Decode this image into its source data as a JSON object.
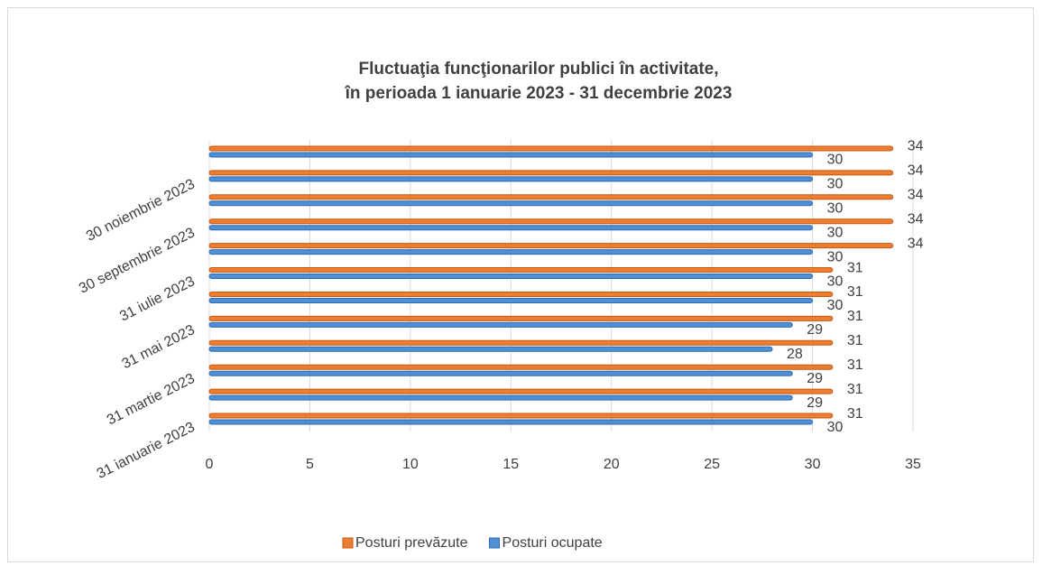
{
  "chart_data": {
    "type": "hbar",
    "title": [
      "Fluctuaţia funcţionarilor publici în activitate,",
      "în perioada 1 ianuarie 2023 - 31 decembrie 2023"
    ],
    "categories": [
      "31 ianuarie 2023",
      null,
      "31 martie 2023",
      null,
      "31 mai 2023",
      null,
      "31 iulie 2023",
      null,
      "30 septembrie 2023",
      null,
      "30 noiembrie 2023",
      null
    ],
    "series": [
      {
        "name": "Posturi prevăzute",
        "color": "#ed7d31",
        "values": [
          31,
          31,
          31,
          31,
          31,
          31,
          31,
          34,
          34,
          34,
          34,
          34
        ]
      },
      {
        "name": "Posturi ocupate",
        "color": "#4f8fd6",
        "values": [
          30,
          29,
          29,
          28,
          29,
          30,
          30,
          30,
          30,
          30,
          30,
          30
        ]
      }
    ],
    "xlim": [
      0,
      35
    ],
    "xticks": [
      0,
      5,
      10,
      15,
      20,
      25,
      30,
      35
    ],
    "grid": true,
    "legend": "bottom"
  }
}
